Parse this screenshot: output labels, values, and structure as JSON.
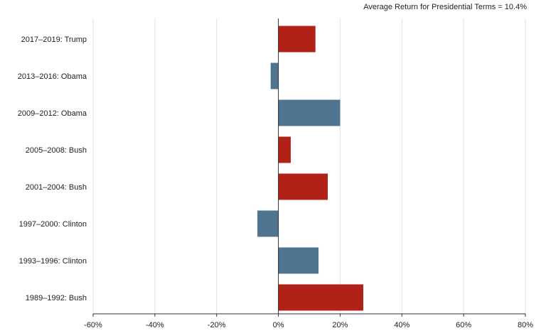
{
  "chart_data": {
    "type": "bar",
    "orientation": "horizontal",
    "title": "Average Return for Presidential Terms = 10.4%",
    "categories": [
      "2017–2019: Trump",
      "2013–2016: Obama",
      "2009–2012: Obama",
      "2005–2008: Bush",
      "2001–2004: Bush",
      "1997–2000: Clinton",
      "1993–1996: Clinton",
      "1989–1992: Bush"
    ],
    "values": [
      12,
      -2.5,
      20,
      4,
      16,
      -6.8,
      13,
      27.5
    ],
    "party": [
      "Republican",
      "Democrat",
      "Democrat",
      "Republican",
      "Republican",
      "Democrat",
      "Democrat",
      "Republican"
    ],
    "xlim": [
      -60,
      80
    ],
    "xticks": [
      -60,
      -40,
      -20,
      0,
      20,
      40,
      60,
      80
    ],
    "xtick_labels": [
      "-60%",
      "-40%",
      "-20%",
      "0%",
      "20%",
      "40%",
      "60%",
      "80%"
    ],
    "grid": "vertical",
    "colors": {
      "Republican": "#b22118",
      "Democrat": "#4f7490",
      "grid": "#e2e2e2",
      "axis": "#333333"
    }
  }
}
